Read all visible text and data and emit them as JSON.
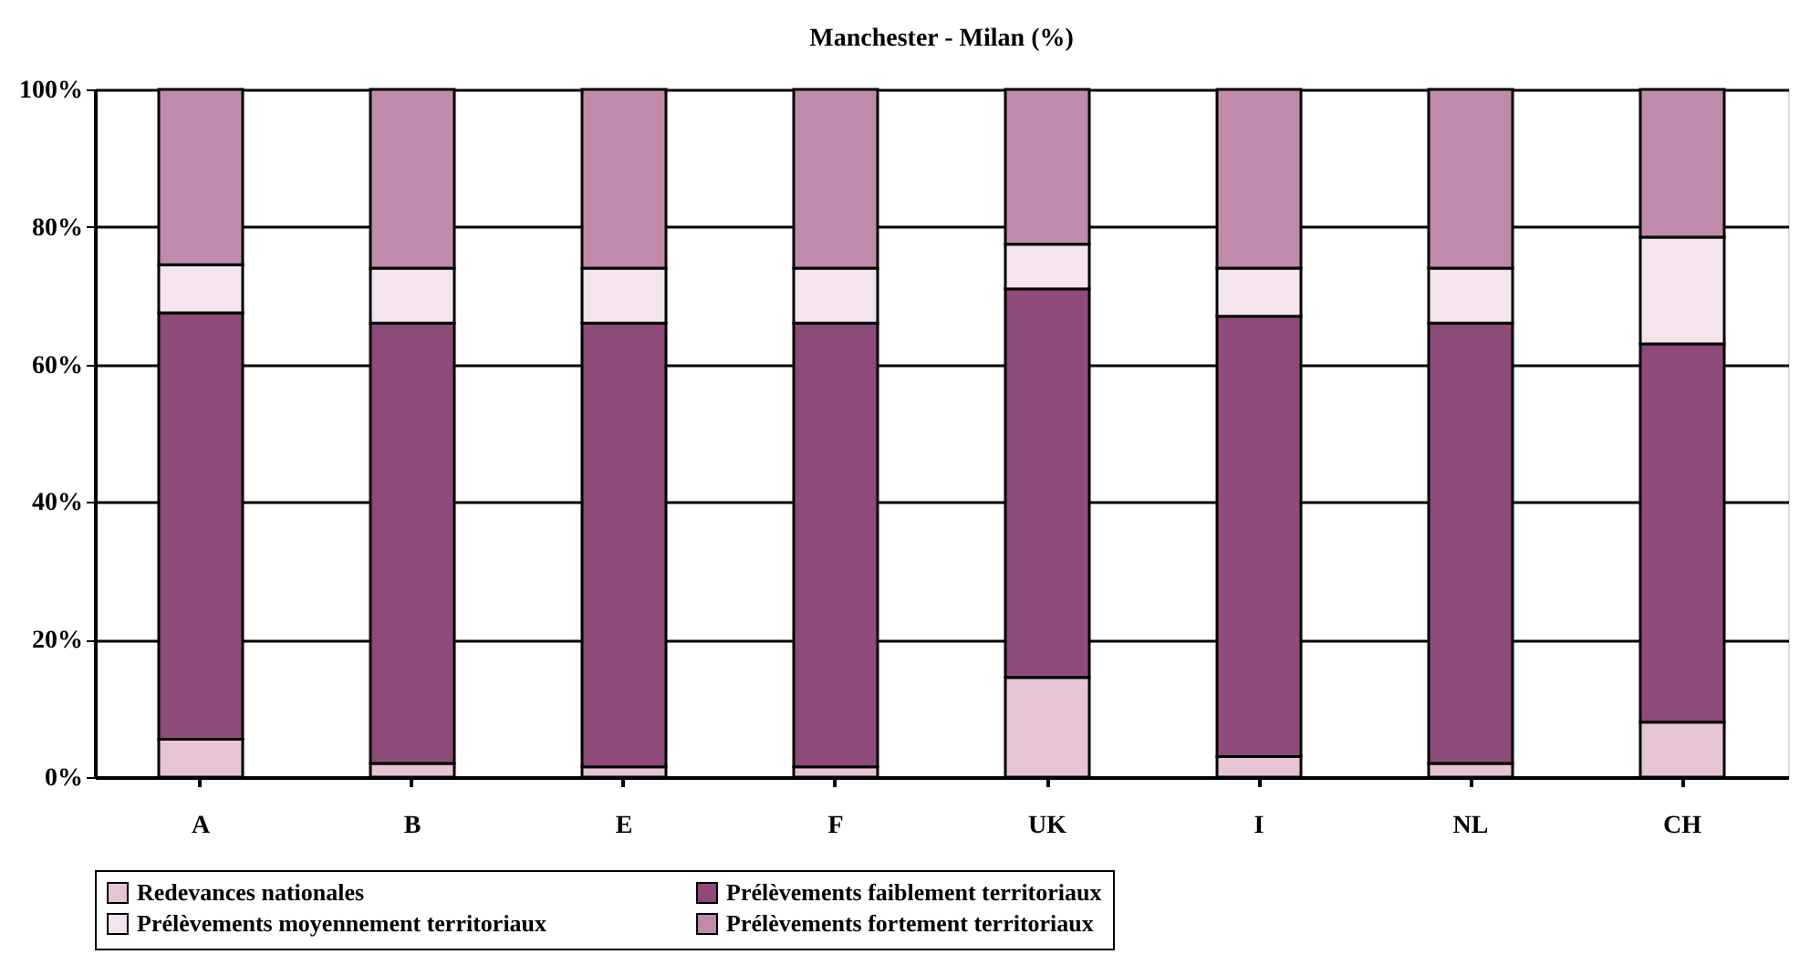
{
  "chart_data": {
    "type": "bar",
    "stacked": true,
    "title": "Manchester - Milan (%)",
    "categories": [
      "A",
      "B",
      "E",
      "F",
      "UK",
      "I",
      "NL",
      "CH"
    ],
    "series": [
      {
        "name": "Redevances nationales",
        "color": "#e6c4d6",
        "values": [
          5.5,
          2,
          1.5,
          1.5,
          14.5,
          3,
          2,
          8
        ]
      },
      {
        "name": "Prélèvements faiblement territoriaux",
        "color": "#8e4a78",
        "values": [
          62,
          64,
          64.5,
          64.5,
          56.5,
          64,
          64,
          55
        ]
      },
      {
        "name": "Prélèvements moyennement territoriaux",
        "color": "#f3e4ee",
        "values": [
          7,
          8,
          8,
          8,
          6.5,
          7,
          8,
          15.5
        ]
      },
      {
        "name": "Prélèvements fortement territoriaux",
        "color": "#c08aaa",
        "values": [
          25.5,
          26,
          26,
          26,
          22.5,
          26,
          26,
          21.5
        ]
      }
    ],
    "ylim": [
      0,
      100
    ],
    "yticks": [
      {
        "value": 0,
        "label": "0%"
      },
      {
        "value": 20,
        "label": "20%"
      },
      {
        "value": 40,
        "label": "40%"
      },
      {
        "value": 60,
        "label": "60%"
      },
      {
        "value": 80,
        "label": "80%"
      },
      {
        "value": 100,
        "label": "100%"
      }
    ],
    "grid": "y",
    "legend": "bottom"
  }
}
